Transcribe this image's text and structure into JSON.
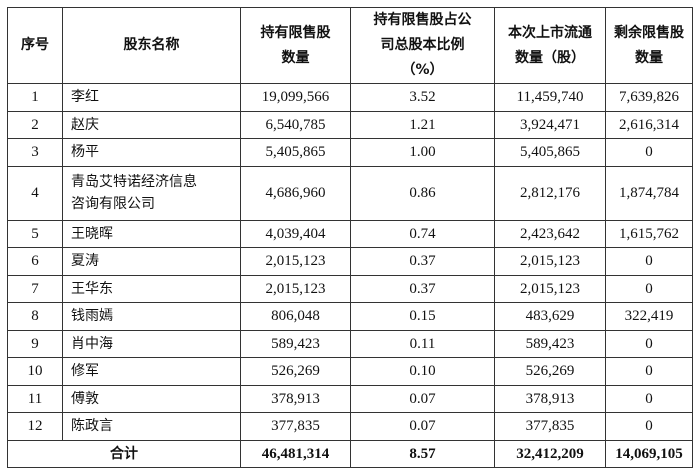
{
  "headers": [
    "序号",
    "股东名称",
    "持有限售股数量",
    "持有限售股占公司总股本比例（%）",
    "本次上市流通数量（股）",
    "剩余限售股数量"
  ],
  "header_lines": [
    [
      "序号"
    ],
    [
      "股东名称"
    ],
    [
      "持有限售股",
      "数量"
    ],
    [
      "持有限售股占公",
      "司总股本比例",
      "（%）"
    ],
    [
      "本次上市流通",
      "数量（股）"
    ],
    [
      "剩余限售股",
      "数量"
    ]
  ],
  "rows": [
    {
      "no": "1",
      "name": "李红",
      "held": "19,099,566",
      "ratio": "3.52",
      "listed": "11,459,740",
      "remaining": "7,639,826"
    },
    {
      "no": "2",
      "name": "赵庆",
      "held": "6,540,785",
      "ratio": "1.21",
      "listed": "3,924,471",
      "remaining": "2,616,314"
    },
    {
      "no": "3",
      "name": "杨平",
      "held": "5,405,865",
      "ratio": "1.00",
      "listed": "5,405,865",
      "remaining": "0"
    },
    {
      "no": "4",
      "name": "青岛艾特诺经济信息咨询有限公司",
      "name_lines": [
        "青岛艾特诺经济信息",
        "咨询有限公司"
      ],
      "held": "4,686,960",
      "ratio": "0.86",
      "listed": "2,812,176",
      "remaining": "1,874,784"
    },
    {
      "no": "5",
      "name": "王晓晖",
      "held": "4,039,404",
      "ratio": "0.74",
      "listed": "2,423,642",
      "remaining": "1,615,762"
    },
    {
      "no": "6",
      "name": "夏涛",
      "held": "2,015,123",
      "ratio": "0.37",
      "listed": "2,015,123",
      "remaining": "0"
    },
    {
      "no": "7",
      "name": "王华东",
      "held": "2,015,123",
      "ratio": "0.37",
      "listed": "2,015,123",
      "remaining": "0"
    },
    {
      "no": "8",
      "name": "钱雨嫣",
      "held": "806,048",
      "ratio": "0.15",
      "listed": "483,629",
      "remaining": "322,419"
    },
    {
      "no": "9",
      "name": "肖中海",
      "held": "589,423",
      "ratio": "0.11",
      "listed": "589,423",
      "remaining": "0"
    },
    {
      "no": "10",
      "name": "修军",
      "held": "526,269",
      "ratio": "0.10",
      "listed": "526,269",
      "remaining": "0"
    },
    {
      "no": "11",
      "name": "傅敦",
      "held": "378,913",
      "ratio": "0.07",
      "listed": "378,913",
      "remaining": "0"
    },
    {
      "no": "12",
      "name": "陈政言",
      "held": "377,835",
      "ratio": "0.07",
      "listed": "377,835",
      "remaining": "0"
    }
  ],
  "total": {
    "label": "合计",
    "held": "46,481,314",
    "ratio": "8.57",
    "listed": "32,412,209",
    "remaining": "14,069,105"
  }
}
